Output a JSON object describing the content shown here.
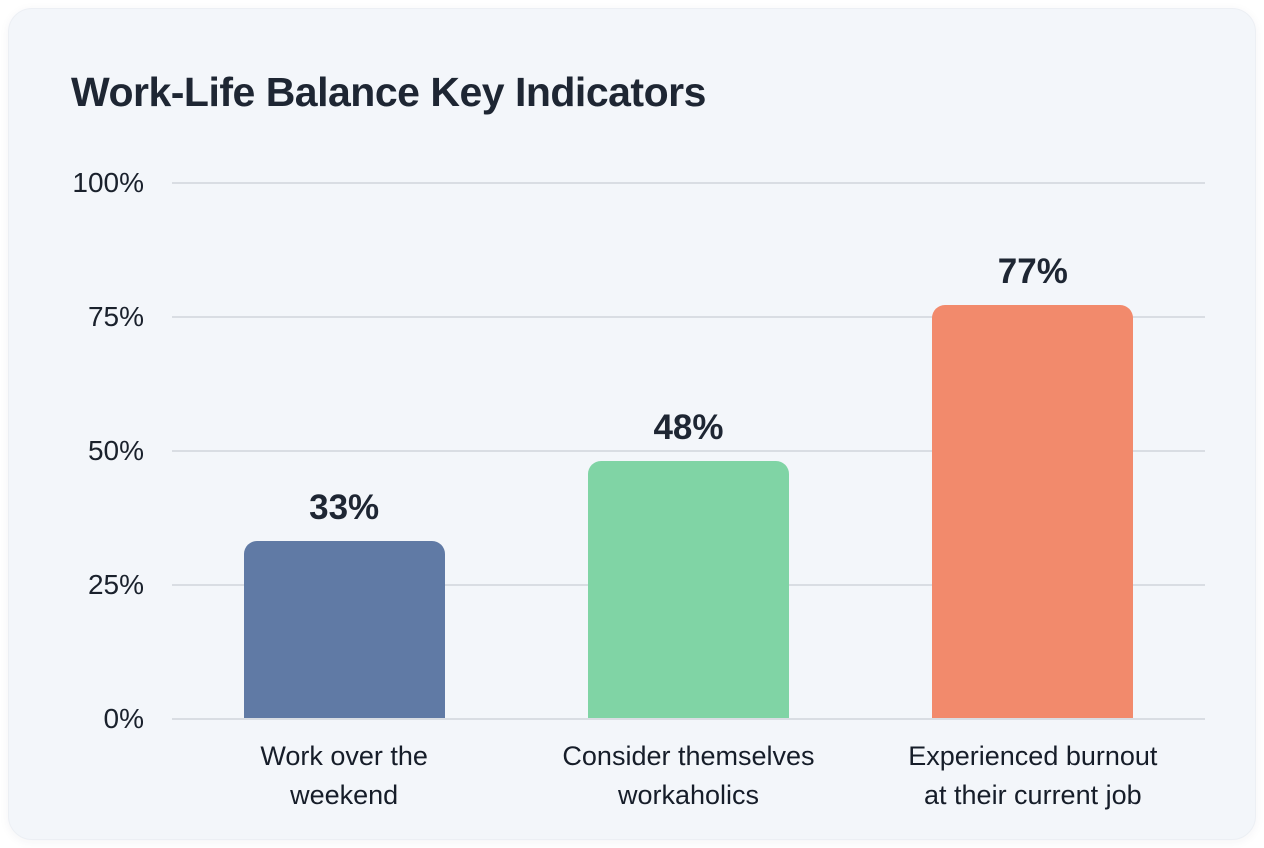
{
  "card": {
    "background": "#f3f6fa",
    "outer_background": "#ffffff"
  },
  "colors": {
    "title_text": "#1e2633",
    "value_label_text": "#1e2633",
    "axis_tick_text": "#1a212c",
    "category_text": "#161d29",
    "gridline": "#d9dde3"
  },
  "chart_data": {
    "type": "bar",
    "title": "Work-Life Balance Key Indicators",
    "categories": [
      "Work over the weekend",
      "Consider themselves workaholics",
      "Experienced burnout at their current job"
    ],
    "category_lines": [
      [
        "Work over the",
        "weekend"
      ],
      [
        "Consider themselves",
        "workaholics"
      ],
      [
        "Experienced burnout",
        "at their current job"
      ]
    ],
    "values": [
      33,
      48,
      77
    ],
    "value_labels": [
      "33%",
      "48%",
      "77%"
    ],
    "bar_colors": [
      "#607aa5",
      "#80d4a5",
      "#f28a6c"
    ],
    "yticks": [
      "100%",
      "75%",
      "50%",
      "25%",
      "0%"
    ],
    "ylim": [
      0,
      100
    ],
    "grid": true,
    "legend": "none",
    "xlabel": "",
    "ylabel": ""
  }
}
